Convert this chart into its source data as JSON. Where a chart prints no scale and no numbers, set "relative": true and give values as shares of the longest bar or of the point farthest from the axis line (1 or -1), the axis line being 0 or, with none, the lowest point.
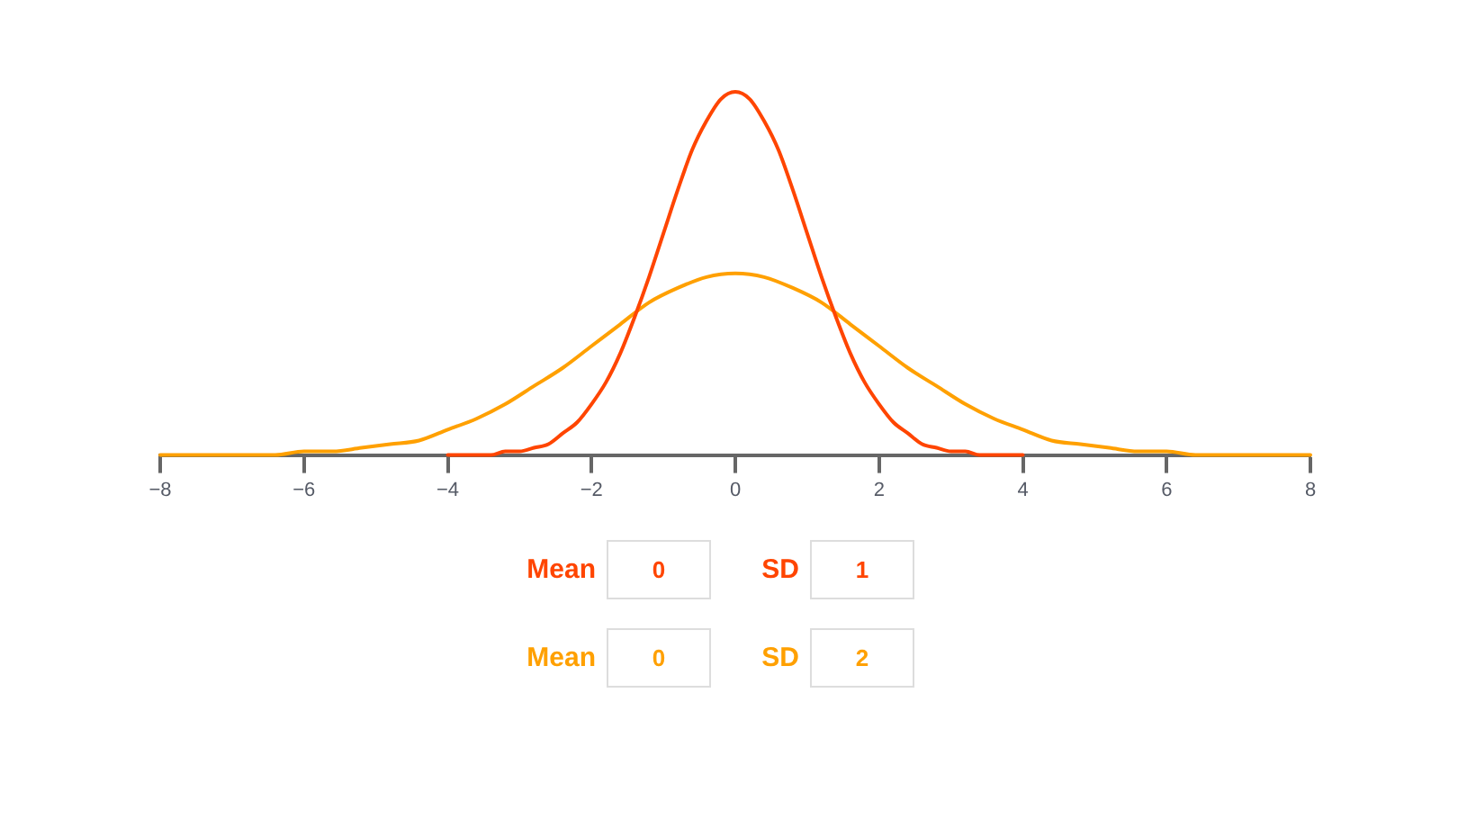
{
  "chart_data": {
    "type": "line",
    "relative": true,
    "xlim": [
      -8,
      8
    ],
    "xticks": [
      {
        "value": -8,
        "label": "−8"
      },
      {
        "value": -6,
        "label": "−6"
      },
      {
        "value": -4,
        "label": "−4"
      },
      {
        "value": -2,
        "label": "−2"
      },
      0,
      2,
      4,
      6,
      8
    ],
    "series": [
      {
        "color": "#ff4500",
        "x": [
          -4,
          -3.8,
          -3.6,
          -3.4,
          -3.2,
          -3,
          -2.8,
          -2.6,
          -2.4,
          -2.2,
          -2,
          -1.8,
          -1.6,
          -1.4,
          -1.2,
          -1,
          -0.8,
          -0.6,
          -0.4,
          -0.2,
          0,
          0.2,
          0.4,
          0.6,
          0.8,
          1,
          1.2,
          1.4,
          1.6,
          1.8,
          2,
          2.2,
          2.4,
          2.6,
          2.8,
          3,
          3.2,
          3.4,
          3.6,
          3.8,
          4
        ],
        "values": [
          0,
          0,
          0,
          0,
          0.01,
          0.01,
          0.02,
          0.03,
          0.06,
          0.09,
          0.14,
          0.2,
          0.28,
          0.38,
          0.49,
          0.61,
          0.73,
          0.84,
          0.92,
          0.98,
          1,
          0.98,
          0.92,
          0.84,
          0.73,
          0.61,
          0.49,
          0.38,
          0.28,
          0.2,
          0.14,
          0.09,
          0.06,
          0.03,
          0.02,
          0.01,
          0.01,
          0,
          0,
          0,
          0
        ]
      },
      {
        "color": "#ffa000",
        "x": [
          -8,
          -7.6,
          -7.2,
          -6.8,
          -6.4,
          -6,
          -5.6,
          -5.2,
          -4.8,
          -4.4,
          -4,
          -3.6,
          -3.2,
          -2.8,
          -2.4,
          -2,
          -1.6,
          -1.2,
          -0.8,
          -0.4,
          0,
          0.4,
          0.8,
          1.2,
          1.6,
          2,
          2.4,
          2.8,
          3.2,
          3.6,
          4,
          4.4,
          4.8,
          5.2,
          5.6,
          6,
          6.4,
          6.8,
          7.2,
          7.6,
          8
        ],
        "values": [
          0,
          0,
          0,
          0,
          0,
          0.01,
          0.01,
          0.02,
          0.03,
          0.04,
          0.07,
          0.1,
          0.14,
          0.19,
          0.24,
          0.3,
          0.36,
          0.42,
          0.46,
          0.49,
          0.5,
          0.49,
          0.46,
          0.42,
          0.36,
          0.3,
          0.24,
          0.19,
          0.14,
          0.1,
          0.07,
          0.04,
          0.03,
          0.02,
          0.01,
          0.01,
          0,
          0,
          0,
          0,
          0
        ]
      }
    ],
    "annotations": [
      "Mean",
      "0",
      "SD",
      "1",
      "Mean",
      "0",
      "SD",
      "2"
    ],
    "marker": "none",
    "line_style": "solid"
  }
}
